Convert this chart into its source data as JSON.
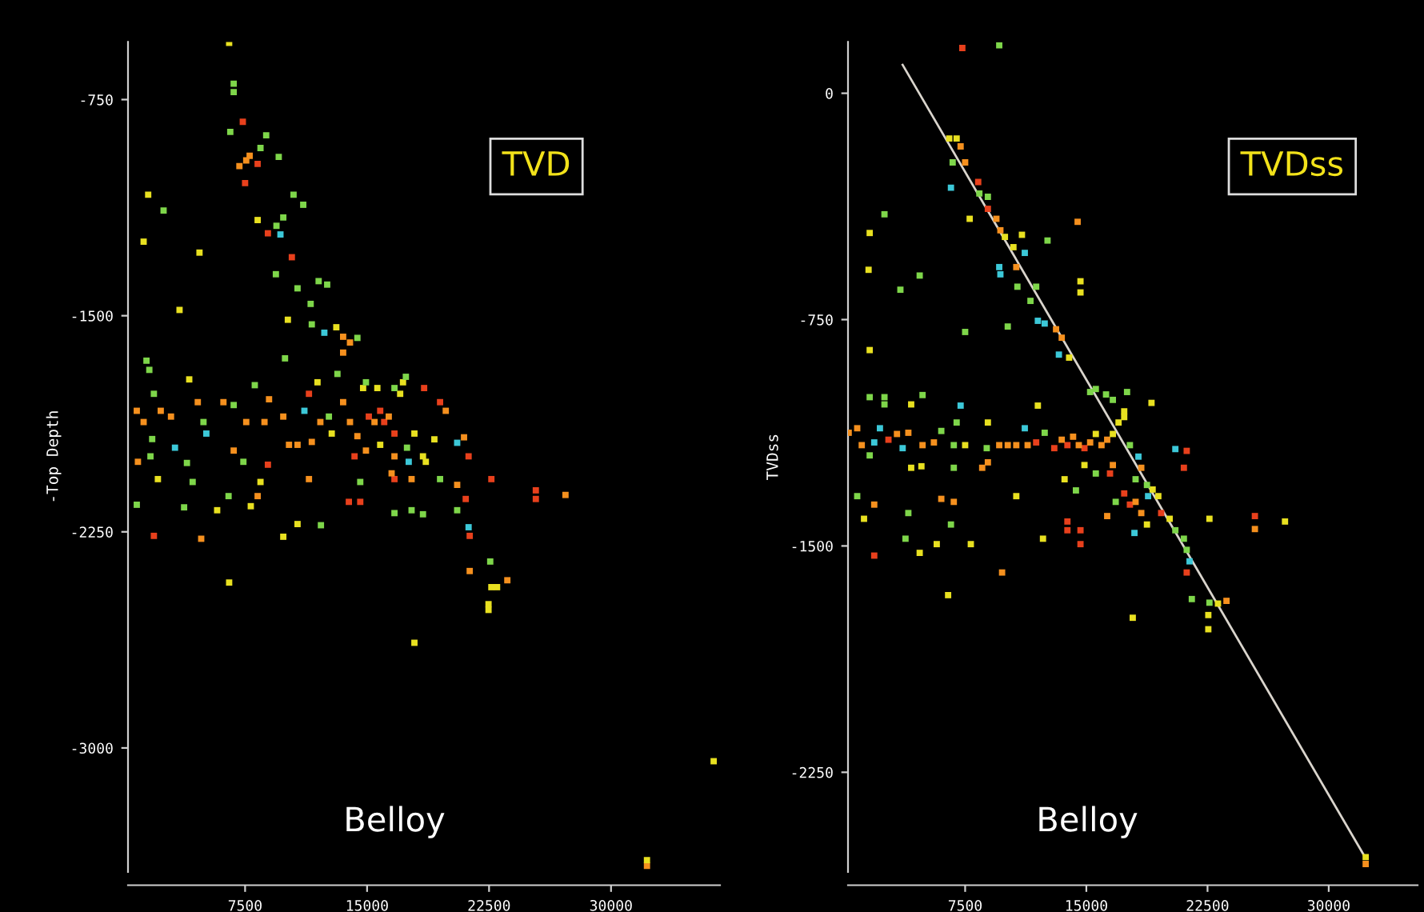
{
  "chart_data": [
    {
      "type": "scatter",
      "ylabel": "-Top Depth",
      "marker": "square",
      "xlim": [
        300,
        36700
      ],
      "ylim": [
        -3430,
        -550
      ],
      "xticks": [
        7500,
        15000,
        22500,
        30000
      ],
      "yticks": [
        -750,
        -1500,
        -2250,
        -3000
      ],
      "annotations": [
        "TVD",
        "Belloy"
      ],
      "series": [
        {
          "color": "#e8401c",
          "x": [
            7360,
            8271,
            7500,
            8902,
            10374,
            1892,
            8902,
            11426,
            15106,
            15807,
            16053,
            16684,
            14229,
            18507,
            19488,
            16684,
            13879,
            14580,
            21066,
            21241,
            21311,
            22642,
            25376,
            25376
          ],
          "values": [
            -827,
            -973,
            -1040,
            -1214,
            -1297,
            -2264,
            -2017,
            -1771,
            -1850,
            -1830,
            -1869,
            -1909,
            -1988,
            -1751,
            -1800,
            -2067,
            -2146,
            -2146,
            -2136,
            -1988,
            -2264,
            -2067,
            -2106,
            -2136
          ]
        },
        {
          "color": "#f5901e",
          "x": [
            7150,
            7570,
            7780,
            13529,
            13949,
            13529,
            840,
            1261,
            2313,
            2944,
            910,
            4591,
            4801,
            6168,
            6799,
            7570,
            8692,
            8972,
            8271,
            9848,
            10199,
            10725,
            11601,
            12127,
            13529,
            13949,
            14405,
            15457,
            16333,
            14931,
            16684,
            19839,
            20540,
            20961,
            17736,
            16509,
            11426,
            27199,
            21311,
            23624,
            32210
          ],
          "values": [
            -981,
            -961,
            -945,
            -1573,
            -1593,
            -1628,
            -1830,
            -1869,
            -1830,
            -1850,
            -2007,
            -1800,
            -2274,
            -1800,
            -1968,
            -1869,
            -1869,
            -1790,
            -2126,
            -1850,
            -1948,
            -1948,
            -1938,
            -1869,
            -1800,
            -1869,
            -1918,
            -1869,
            -1850,
            -1968,
            -1988,
            -1830,
            -2087,
            -1922,
            -2067,
            -2047,
            -2067,
            -2122,
            -2386,
            -2418,
            -3409
          ]
        },
        {
          "color": "#e8e020",
          "x": [
            6519,
            1541,
            1261,
            4696,
            8271,
            3469,
            10129,
            13108,
            2138,
            4065,
            5782,
            8446,
            7850,
            11952,
            12827,
            14756,
            17034,
            17209,
            15632,
            15807,
            17911,
            18437,
            19138,
            18612,
            10725,
            9848,
            22642,
            22993,
            22467,
            22467,
            6519,
            17911,
            36311,
            32210
          ],
          "values": [
            -553,
            -1080,
            -1243,
            -1281,
            -1168,
            -1480,
            -1514,
            -1540,
            -2067,
            -1721,
            -2175,
            -2077,
            -2161,
            -1731,
            -1909,
            -1751,
            -1771,
            -1731,
            -1751,
            -1948,
            -1909,
            -1988,
            -1929,
            -2007,
            -2223,
            -2267,
            -2442,
            -2442,
            -2501,
            -2521,
            -2426,
            -2635,
            -3046,
            -3389
          ]
        },
        {
          "color": "#7ed64a",
          "x": [
            6799,
            6799,
            6589,
            8446,
            8797,
            9568,
            2488,
            9428,
            9848,
            10479,
            11075,
            9393,
            10725,
            12022,
            12547,
            11531,
            11601,
            14405,
            9954,
            1436,
            1611,
            1892,
            1787,
            1681,
            4942,
            3924,
            4275,
            3749,
            6483,
            840,
            6799,
            7395,
            8096,
            12652,
            13178,
            17385,
            16684,
            14931,
            17455,
            14580,
            16684,
            17736,
            18437,
            19488,
            20540,
            12162,
            22572
          ],
          "values": [
            -695,
            -724,
            -862,
            -918,
            -874,
            -949,
            -1135,
            -1188,
            -1159,
            -1080,
            -1115,
            -1356,
            -1405,
            -1380,
            -1392,
            -1459,
            -1530,
            -1577,
            -1648,
            -1656,
            -1688,
            -1771,
            -1928,
            -1988,
            -1869,
            -2011,
            -2077,
            -2165,
            -2126,
            -2156,
            -1810,
            -2007,
            -1741,
            -1850,
            -1702,
            -1712,
            -1751,
            -1731,
            -1958,
            -2077,
            -2185,
            -2175,
            -2189,
            -2067,
            -2175,
            -2227,
            -2353
          ]
        },
        {
          "color": "#3cc8d8",
          "x": [
            9673,
            12372,
            3189,
            5117,
            11146,
            17560,
            20540,
            21241
          ],
          "values": [
            -1218,
            -1559,
            -1958,
            -1909,
            -1830,
            -2007,
            -1941,
            -2234
          ]
        }
      ]
    },
    {
      "type": "scatter",
      "ylabel": "TVDss",
      "marker": "square",
      "xlim": [
        250,
        35500
      ],
      "ylim": [
        -2580,
        170
      ],
      "xticks": [
        7500,
        15000,
        22500,
        30000
      ],
      "yticks": [
        0,
        -750,
        -1500,
        -2250
      ],
      "annotations": [
        "TVDss",
        "Belloy"
      ],
      "series": [
        {
          "color": "#e8401c",
          "x": [
            7324,
            8308,
            8906,
            2753,
            11894,
            13016,
            13829,
            14883,
            17344,
            17696,
            19630,
            21212,
            21212,
            21036,
            16465,
            13829,
            13829,
            14637,
            14637,
            1874,
            25431
          ],
          "values": [
            150,
            -294,
            -383,
            -1148,
            -1157,
            -1176,
            -1166,
            -1176,
            -1326,
            -1363,
            -1391,
            -1588,
            -1185,
            -1241,
            -1260,
            -1419,
            -1448,
            -1448,
            -1494,
            -1532,
            -1401
          ]
        },
        {
          "color": "#f5901e",
          "x": [
            7219,
            7500,
            9434,
            9680,
            10664,
            13125,
            13477,
            14461,
            292,
            820,
            1101,
            3281,
            3984,
            4863,
            5566,
            9610,
            10137,
            10664,
            11367,
            13477,
            14180,
            14532,
            15235,
            15938,
            16290,
            18399,
            18047,
            18399,
            16641,
            16290,
            8555,
            8906,
            6023,
            6797,
            1874,
            9786,
            25431,
            23673,
            32288
          ],
          "values": [
            -176,
            -229,
            -416,
            -454,
            -576,
            -782,
            -810,
            -426,
            -1125,
            -1110,
            -1166,
            -1129,
            -1125,
            -1166,
            -1157,
            -1166,
            -1166,
            -1166,
            -1166,
            -1148,
            -1138,
            -1166,
            -1157,
            -1166,
            -1148,
            -1241,
            -1354,
            -1391,
            -1232,
            -1401,
            -1241,
            -1223,
            -1344,
            -1354,
            -1363,
            -1588,
            -1444,
            -1682,
            -2554
          ]
        },
        {
          "color": "#e8e020",
          "x": [
            6516,
            6973,
            7781,
            9961,
            10488,
            11015,
            13934,
            14637,
            14637,
            1523,
            1593,
            1593,
            4160,
            7500,
            8906,
            11999,
            15586,
            16641,
            16993,
            17344,
            17344,
            19032,
            19102,
            19454,
            20157,
            14883,
            13653,
            18751,
            12317,
            10664,
            4160,
            4793,
            5742,
            4687,
            7851,
            1241,
            6445,
            17872,
            22618,
            27294,
            23146,
            22548,
            22548,
            32288
          ],
          "values": [
            -150,
            -150,
            -416,
            -476,
            -510,
            -469,
            -876,
            -623,
            -660,
            -585,
            -463,
            -851,
            -1031,
            -1166,
            -1091,
            -1035,
            -1129,
            -1129,
            -1091,
            -1073,
            -1054,
            -1026,
            -1313,
            -1335,
            -1410,
            -1232,
            -1279,
            -1429,
            -1476,
            -1335,
            -1241,
            -1236,
            -1494,
            -1523,
            -1494,
            -1410,
            -1663,
            -1738,
            -1410,
            -1419,
            -1691,
            -1729,
            -1776,
            -2531
          ]
        },
        {
          "color": "#7ed64a",
          "x": [
            9610,
            6727,
            8379,
            8906,
            11895,
            11543,
            12598,
            10734,
            10137,
            7500,
            2507,
            3492,
            4687,
            1593,
            2507,
            2507,
            4863,
            1593,
            6023,
            6797,
            6973,
            8836,
            12422,
            15235,
            15586,
            16219,
            16641,
            17520,
            17696,
            18047,
            18751,
            20508,
            21036,
            21212,
            15586,
            14356,
            16817,
            6797,
            6621,
            3984,
            3808,
            820,
            21528,
            22618
          ],
          "values": [
            159,
            -229,
            -332,
            -343,
            -641,
            -688,
            -488,
            -641,
            -773,
            -791,
            -401,
            -651,
            -604,
            -1007,
            -1007,
            -1031,
            -1000,
            -1200,
            -1119,
            -1166,
            -1091,
            -1176,
            -1125,
            -990,
            -980,
            -998,
            -1016,
            -990,
            -1166,
            -1279,
            -1298,
            -1448,
            -1476,
            -1513,
            -1260,
            -1316,
            -1354,
            -1241,
            -1429,
            -1391,
            -1476,
            -1335,
            -1676,
            -1688
          ]
        },
        {
          "color": "#3cc8d8",
          "x": [
            6621,
            11191,
            9610,
            9680,
            12000,
            12422,
            13301,
            1874,
            2226,
            3632,
            7219,
            11191,
            18223,
            18821,
            21388,
            20508,
            17977
          ],
          "values": [
            -313,
            -529,
            -576,
            -600,
            -754,
            -763,
            -866,
            -1157,
            -1110,
            -1176,
            -1035,
            -1110,
            -1204,
            -1335,
            -1551,
            -1179,
            -1457
          ]
        },
        {
          "type": "line",
          "marker": "none",
          "color": "#d9d4cc",
          "x": [
            3632,
            32288
          ],
          "values": [
            94,
            -2535
          ]
        }
      ]
    }
  ]
}
